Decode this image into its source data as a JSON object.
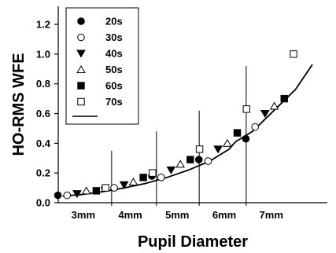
{
  "chart_data": {
    "type": "scatter",
    "xlabel": "Pupil Diameter",
    "ylabel": "HO-RMS WFE",
    "ylim": [
      0.0,
      1.2
    ],
    "yticks": [
      "0.0",
      "0.2",
      "0.4",
      "0.6",
      "0.8",
      "1.0",
      "1.2"
    ],
    "categories": [
      "3mm",
      "4mm",
      "5mm",
      "6mm",
      "7mm"
    ],
    "grid": false,
    "legend_position": "top-left",
    "series": [
      {
        "name": "20s",
        "marker": "filled-circle",
        "points": [
          [
            "3mm",
            0.05
          ],
          [
            "4mm",
            0.1
          ],
          [
            "5mm",
            0.18
          ],
          [
            "6mm",
            0.29
          ],
          [
            "7mm",
            0.43
          ]
        ]
      },
      {
        "name": "30s",
        "marker": "open-circle",
        "points": [
          [
            "3mm",
            0.05
          ],
          [
            "4mm",
            0.1
          ],
          [
            "5mm",
            0.17
          ],
          [
            "6mm",
            0.28
          ],
          [
            "7mm",
            0.51
          ]
        ]
      },
      {
        "name": "40s",
        "marker": "filled-triangle",
        "points": [
          [
            "3mm",
            0.06
          ],
          [
            "4mm",
            0.12
          ],
          [
            "5mm",
            0.22
          ],
          [
            "6mm",
            0.36
          ],
          [
            "7mm",
            0.6
          ]
        ]
      },
      {
        "name": "50s",
        "marker": "open-triangle",
        "points": [
          [
            "3mm",
            0.08
          ],
          [
            "4mm",
            0.14
          ],
          [
            "5mm",
            0.26
          ],
          [
            "6mm",
            0.4
          ],
          [
            "7mm",
            0.65
          ]
        ]
      },
      {
        "name": "60s",
        "marker": "filled-square",
        "points": [
          [
            "3mm",
            0.08
          ],
          [
            "4mm",
            0.17
          ],
          [
            "5mm",
            0.29
          ],
          [
            "6mm",
            0.47
          ],
          [
            "7mm",
            0.7
          ]
        ]
      },
      {
        "name": "70s",
        "marker": "open-square",
        "points": [
          [
            "3mm",
            0.1
          ],
          [
            "4mm",
            0.2
          ],
          [
            "5mm",
            0.36
          ],
          [
            "6mm",
            0.63
          ],
          [
            "7mm",
            1.0
          ]
        ]
      }
    ],
    "fit_line": {
      "type": "curve",
      "points": [
        [
          2.55,
          0.045
        ],
        [
          3.0,
          0.055
        ],
        [
          3.5,
          0.075
        ],
        [
          4.0,
          0.1
        ],
        [
          4.5,
          0.13
        ],
        [
          5.0,
          0.17
        ],
        [
          5.5,
          0.22
        ],
        [
          6.0,
          0.28
        ],
        [
          6.45,
          0.36
        ],
        [
          6.6,
          0.41
        ],
        [
          7.0,
          0.48
        ],
        [
          7.5,
          0.62
        ],
        [
          8.0,
          0.76
        ],
        [
          8.4,
          0.93
        ]
      ]
    },
    "dividers": [
      {
        "x": 3.7,
        "ytop": 0.35
      },
      {
        "x": 4.75,
        "ytop": 0.48
      },
      {
        "x": 5.75,
        "ytop": 0.62
      },
      {
        "x": 6.85,
        "ytop": 0.92
      }
    ]
  }
}
